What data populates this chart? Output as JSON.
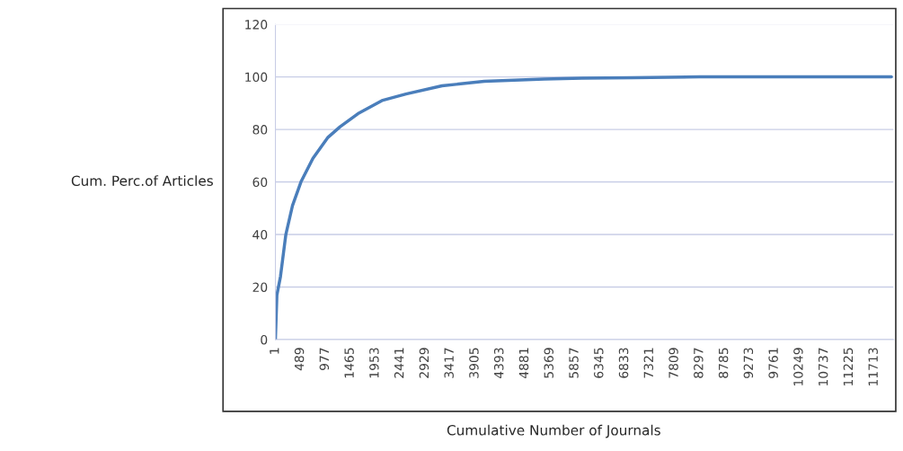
{
  "chart_data": {
    "type": "line",
    "xlabel": "Cumulative Number of Journals",
    "ylabel": "Cum. Perc.of Articles",
    "x": [
      1,
      30,
      100,
      205,
      335,
      500,
      735,
      1030,
      1265,
      1615,
      2085,
      2555,
      3260,
      4085,
      5255,
      6000,
      7000,
      8300,
      10000,
      12050
    ],
    "series": [
      {
        "color": "#4a7ebb",
        "values": [
          0,
          17,
          24,
          40,
          51,
          60,
          69,
          77,
          81,
          86,
          91,
          93.5,
          96.6,
          98.3,
          99.2,
          99.5,
          99.7,
          100,
          100,
          100
        ]
      }
    ],
    "xlim": [
      1,
      12100
    ],
    "xticks": [
      1,
      489,
      977,
      1465,
      1953,
      2441,
      2929,
      3417,
      3905,
      4393,
      4881,
      5369,
      5857,
      6345,
      6833,
      7321,
      7809,
      8297,
      8785,
      9273,
      9761,
      10249,
      10737,
      11225,
      11713
    ],
    "ylim": [
      0,
      120
    ],
    "yticks": [
      0,
      20,
      40,
      60,
      80,
      100,
      120
    ],
    "grid": "y",
    "legend": false,
    "marker": "none",
    "line_style": "solid"
  }
}
